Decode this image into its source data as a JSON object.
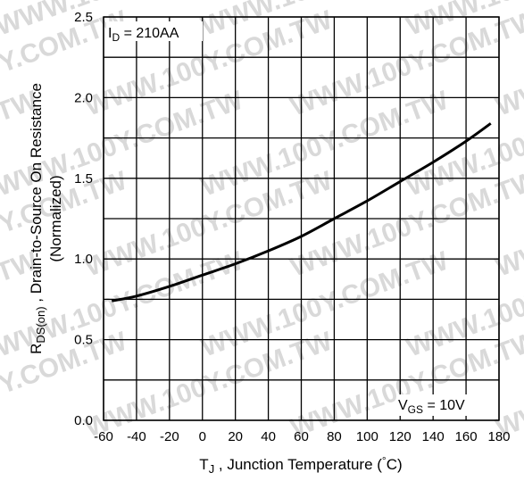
{
  "chart_data": {
    "type": "line",
    "xlabel_main": "T",
    "xlabel_sub": "J",
    "xlabel_rest": " , Junction Temperature  (",
    "xlabel_deg": "°",
    "xlabel_unit": "C)",
    "ylabel_main": "R",
    "ylabel_sub": "DS(on)",
    "ylabel_rest": "  , Drain-to-Source On Resistance",
    "ylabel_line2": "(Normalized)",
    "xlim": [
      -60,
      180
    ],
    "ylim": [
      0.0,
      2.5
    ],
    "xticks": [
      "-60",
      "-40",
      "-20",
      "0",
      "20",
      "40",
      "60",
      "80",
      "100",
      "120",
      "140",
      "160",
      "180"
    ],
    "yticks": [
      "0.0",
      "0.5",
      "1.0",
      "1.5",
      "2.0",
      "2.5"
    ],
    "grid": true,
    "annotations": {
      "id_main": "I",
      "id_sub": "D",
      "id_value": " = 210AA",
      "vgs_main": "V",
      "vgs_sub": "GS",
      "vgs_value": " = 10V"
    },
    "series": [
      {
        "x": [
          -55,
          -40,
          -20,
          0,
          20,
          40,
          60,
          80,
          100,
          120,
          140,
          160,
          175
        ],
        "y": [
          0.74,
          0.77,
          0.83,
          0.9,
          0.97,
          1.05,
          1.14,
          1.25,
          1.36,
          1.48,
          1.6,
          1.73,
          1.84
        ]
      }
    ],
    "line_color": "#000000",
    "watermark": "WWW.100Y.COM.TW"
  }
}
